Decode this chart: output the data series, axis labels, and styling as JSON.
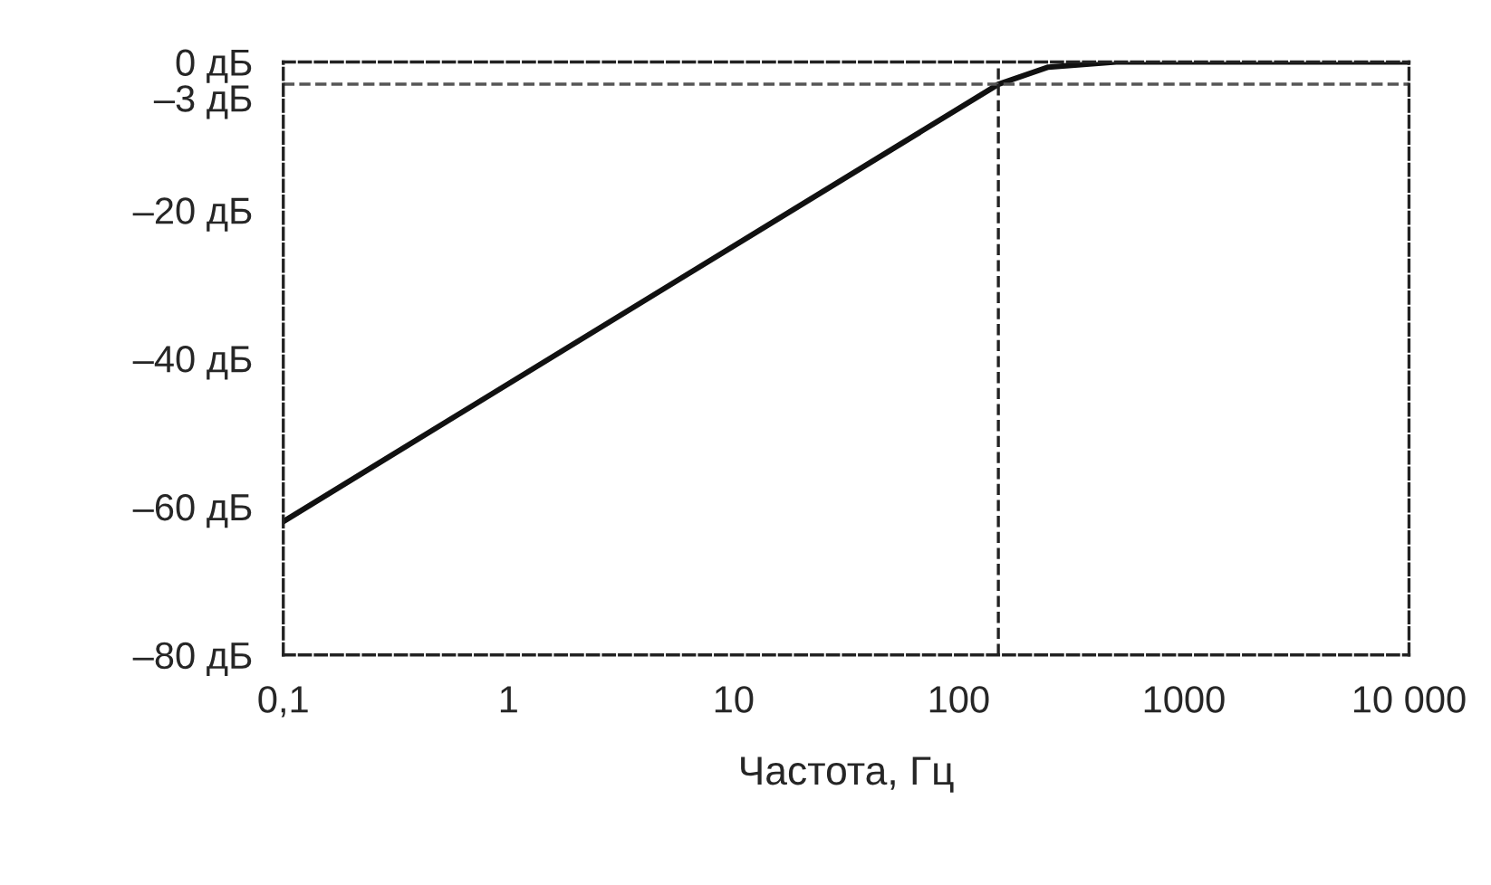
{
  "chart_data": {
    "type": "line",
    "xlabel": "Частота, Гц",
    "log": "x",
    "x": [
      0.1,
      150,
      250,
      500,
      10000
    ],
    "series": [
      {
        "color": "#111111",
        "values": [
          -62,
          -3,
          -0.7,
          0,
          0
        ]
      }
    ],
    "xlim": [
      0.1,
      10000
    ],
    "ylim": [
      -80,
      0
    ],
    "xticks": [
      {
        "value": 0.1,
        "label": "0,1"
      },
      1,
      10,
      100,
      1000,
      {
        "value": 10000,
        "label": "10 000"
      }
    ],
    "yticks": [
      {
        "value": 0,
        "label": "0 дБ"
      },
      {
        "value": -3,
        "label": "–3 дБ"
      },
      {
        "value": -20,
        "label": "–20 дБ"
      },
      {
        "value": -40,
        "label": "–40 дБ"
      },
      {
        "value": -60,
        "label": "–60 дБ"
      },
      {
        "value": -80,
        "label": "–80 дБ"
      }
    ],
    "ref_lines": [
      {
        "axis": "y",
        "value": -3,
        "color": "#555555",
        "line_style": "dashed"
      },
      {
        "axis": "x",
        "value": 150,
        "color": "#222222",
        "line_style": "dashed"
      }
    ],
    "grid": false,
    "marker": "none",
    "line_style": "solid"
  }
}
